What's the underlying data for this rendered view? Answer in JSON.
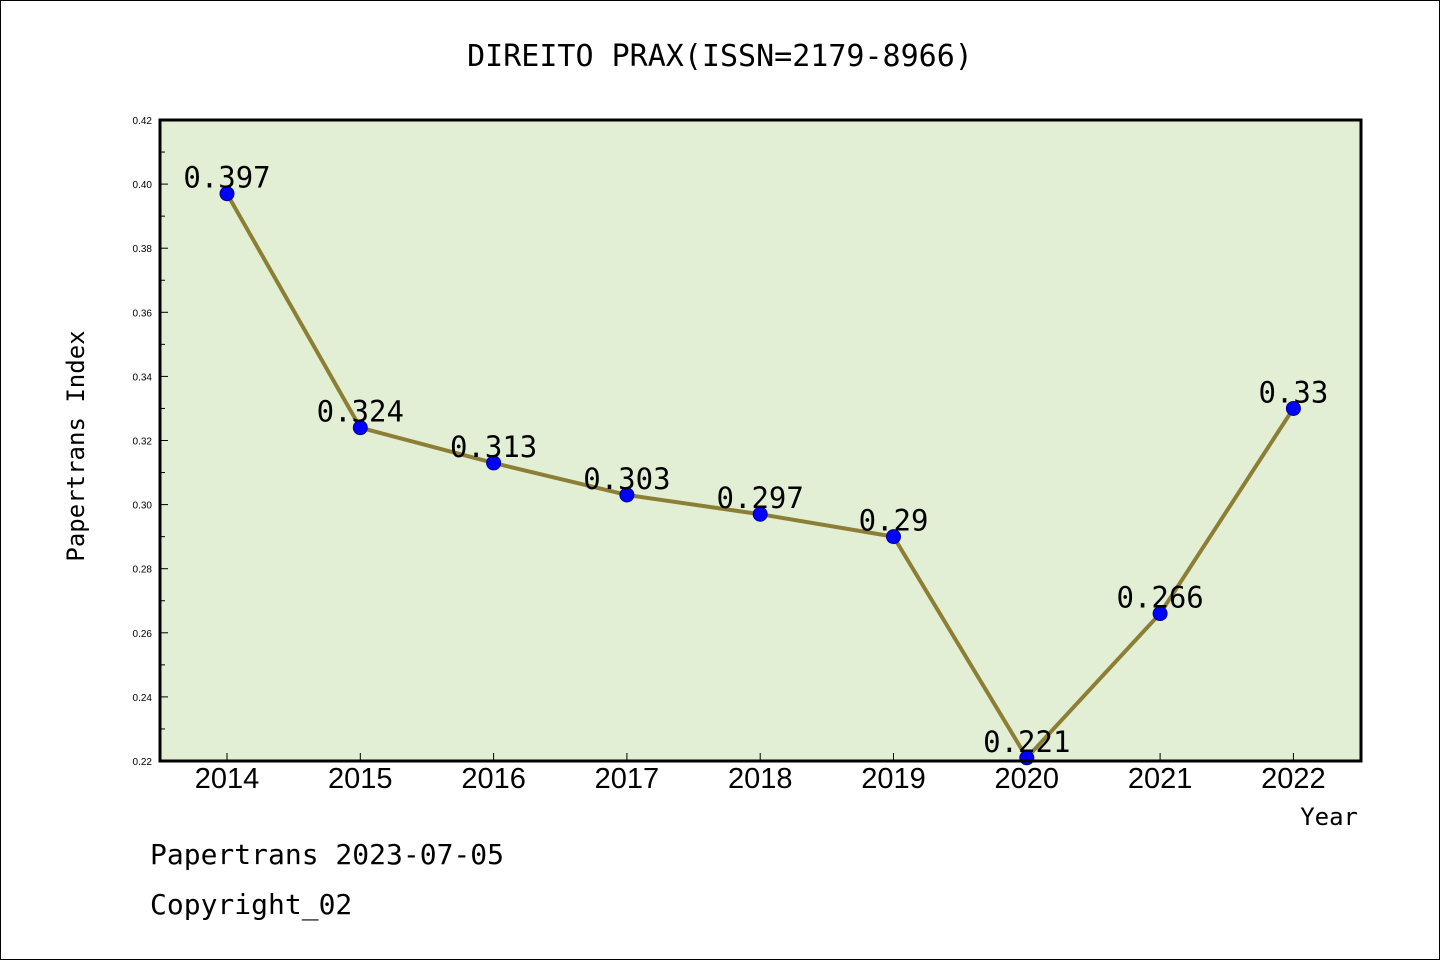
{
  "footer": {
    "line1": "Papertrans 2023-07-05",
    "line2": "Copyright_02"
  },
  "colors": {
    "plot_background": "#e2efd5",
    "line": "#8c7e35",
    "marker": "#0000ff",
    "marker_edge": "#00008b"
  },
  "chart_data": {
    "type": "line",
    "title": "DIREITO PRAX(ISSN=2179-8966)",
    "xlabel": "Year",
    "ylabel": "Papertrans Index",
    "categories": [
      "2014",
      "2015",
      "2016",
      "2017",
      "2018",
      "2019",
      "2020",
      "2021",
      "2022"
    ],
    "series": [
      {
        "values": [
          0.397,
          0.324,
          0.313,
          0.303,
          0.297,
          0.29,
          0.221,
          0.266,
          0.33
        ],
        "labels": [
          "0.397",
          "0.324",
          "0.313",
          "0.303",
          "0.297",
          "0.29",
          "0.221",
          "0.266",
          "0.33"
        ]
      }
    ],
    "ylim": [
      0.22,
      0.42
    ],
    "yticks": [
      "0.22",
      "0.24",
      "0.26",
      "0.28",
      "0.30",
      "0.32",
      "0.34",
      "0.36",
      "0.38",
      "0.40",
      "0.42"
    ],
    "grid": false,
    "legend": "none"
  }
}
